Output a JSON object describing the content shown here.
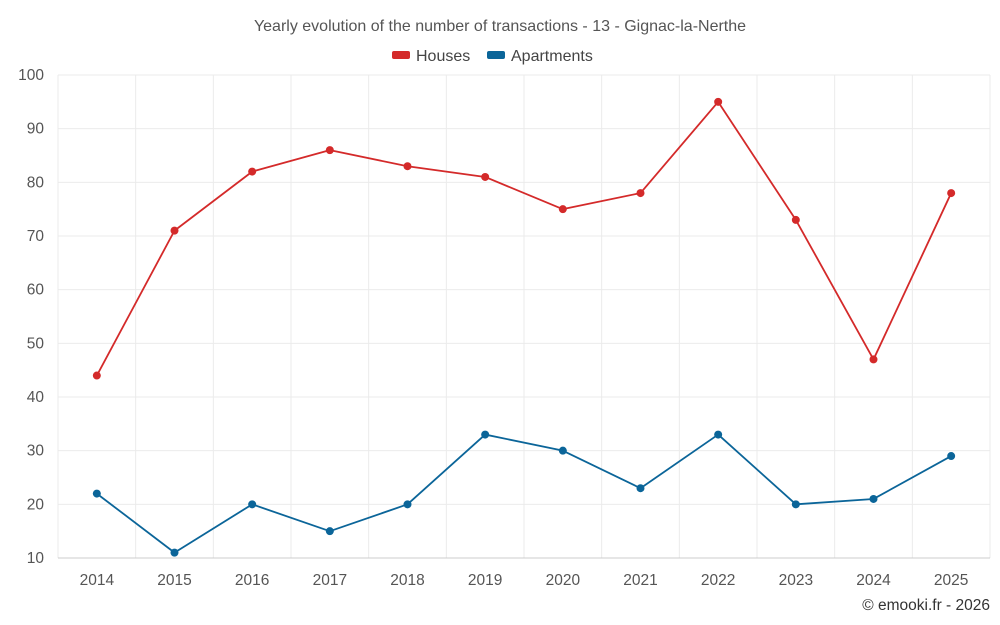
{
  "chart_data": {
    "type": "line",
    "title": "Yearly evolution of the number of transactions - 13 - Gignac-la-Nerthe",
    "categories": [
      "2014",
      "2015",
      "2016",
      "2017",
      "2018",
      "2019",
      "2020",
      "2021",
      "2022",
      "2023",
      "2024",
      "2025"
    ],
    "series": [
      {
        "name": "Houses",
        "color": "#d42a2a",
        "values": [
          44,
          71,
          82,
          86,
          83,
          81,
          75,
          78,
          95,
          73,
          47,
          78
        ]
      },
      {
        "name": "Apartments",
        "color": "#0b6599",
        "values": [
          22,
          11,
          20,
          15,
          20,
          33,
          30,
          23,
          33,
          20,
          21,
          29
        ]
      }
    ],
    "ylim": [
      10,
      100
    ],
    "yticks": [
      "10",
      "20",
      "30",
      "40",
      "50",
      "60",
      "70",
      "80",
      "90",
      "100"
    ],
    "grid": true,
    "legend_position": "top-center",
    "xlabel": "",
    "ylabel": ""
  },
  "credit": "© emooki.fr - 2026"
}
